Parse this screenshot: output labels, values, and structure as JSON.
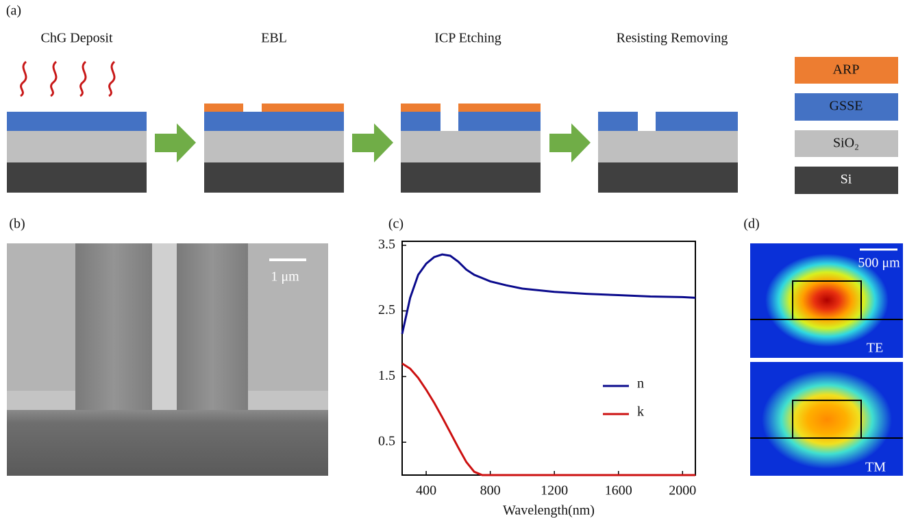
{
  "panel_labels": [
    "(a)",
    "(b)",
    "(c)",
    "(d)"
  ],
  "process_steps": [
    "ChG Deposit",
    "EBL",
    "ICP Etching",
    "Resisting Removing"
  ],
  "layer_legend": [
    "ARP",
    "GSSE",
    "SiO₂",
    "Si"
  ],
  "sem_scale_bar": "1 μm",
  "mode_scale_bar": "500 μm",
  "mode_labels": [
    "TE",
    "TM"
  ],
  "chart_data": {
    "type": "line",
    "x_label": "Wavelength(nm)",
    "x": [
      250,
      300,
      350,
      400,
      450,
      500,
      550,
      600,
      650,
      700,
      750,
      800,
      900,
      1000,
      1200,
      1400,
      1600,
      1800,
      2000,
      2080
    ],
    "series": [
      {
        "name": "n",
        "color": "#0a0a8c",
        "values": [
          2.15,
          2.7,
          3.05,
          3.22,
          3.32,
          3.36,
          3.34,
          3.25,
          3.13,
          3.05,
          3.0,
          2.95,
          2.89,
          2.84,
          2.79,
          2.76,
          2.74,
          2.72,
          2.71,
          2.7
        ]
      },
      {
        "name": "k",
        "color": "#cc1010",
        "values": [
          1.7,
          1.62,
          1.48,
          1.3,
          1.1,
          0.88,
          0.65,
          0.42,
          0.2,
          0.05,
          0,
          0,
          0,
          0,
          0,
          0,
          0,
          0,
          0,
          0
        ]
      }
    ],
    "xlim": [
      250,
      2080
    ],
    "ylim": [
      0,
      3.56
    ],
    "xticks": [
      400,
      800,
      1200,
      1600,
      2000
    ],
    "yticks": [
      0.5,
      1.5,
      2.5,
      3.5
    ]
  }
}
